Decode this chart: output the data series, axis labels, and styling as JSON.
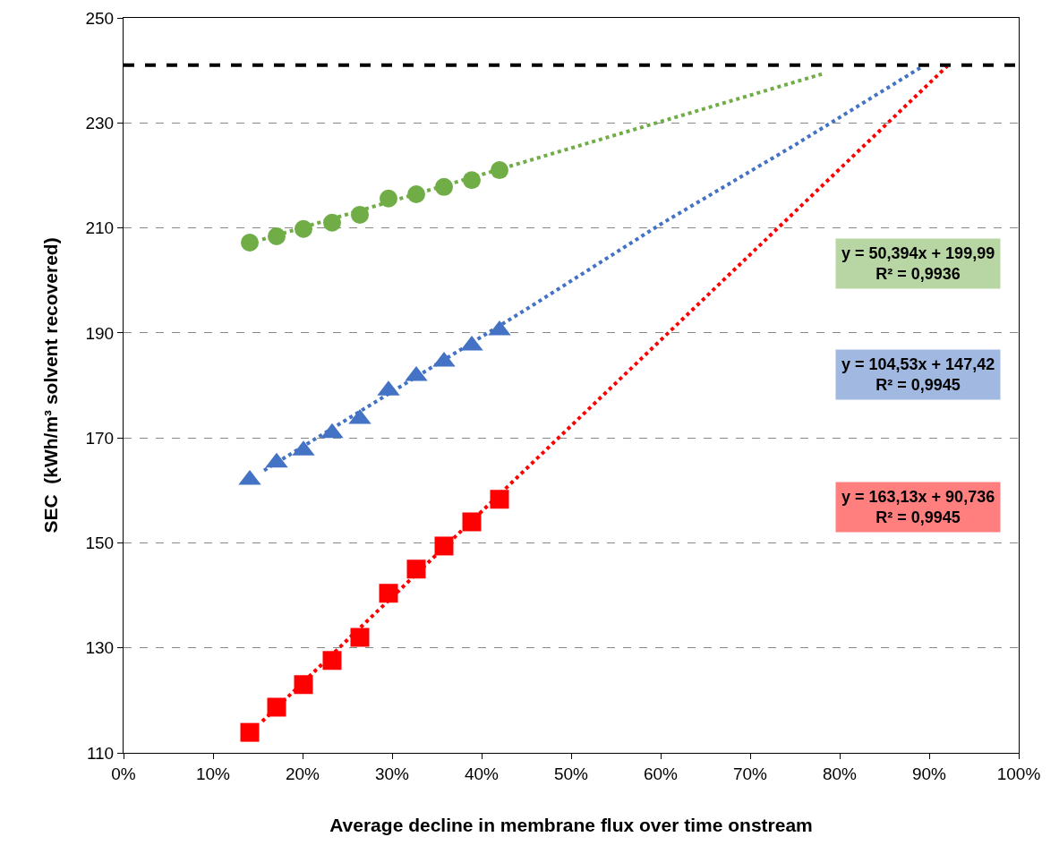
{
  "chart_data": {
    "type": "scatter",
    "xlabel": "Average decline in membrane flux over time onstream",
    "ylabel": "SEC  (kWh/m³ solvent recovered)",
    "x": [
      0.141,
      0.171,
      0.201,
      0.233,
      0.264,
      0.296,
      0.327,
      0.358,
      0.389,
      0.42
    ],
    "series": [
      {
        "color": "#70ad47",
        "marker": "circle",
        "values": [
          207.2,
          208.4,
          209.8,
          211,
          212.5,
          215.6,
          216.4,
          217.8,
          219.1,
          221
        ]
      },
      {
        "color": "#4472c4",
        "marker": "triangle",
        "values": [
          162,
          165.3,
          167.6,
          170.9,
          173.6,
          179,
          181.8,
          184.5,
          187.6,
          190.5
        ]
      },
      {
        "color": "#ff0000",
        "marker": "square",
        "values": [
          113.9,
          118.7,
          123,
          127.6,
          132,
          140.4,
          145,
          149.4,
          154,
          158.3
        ]
      },
      {
        "type": "line",
        "color": "#70ad47",
        "marker": "none",
        "line_style": "dotted",
        "x": [
          0.155,
          0.5,
          0.78
        ],
        "values": [
          207.8,
          225.2,
          239.3
        ]
      },
      {
        "type": "line",
        "color": "#4472c4",
        "marker": "none",
        "line_style": "dotted",
        "x": [
          0.89,
          0.75,
          0.6,
          0.45,
          0.3,
          0.155
        ],
        "values": [
          240.5,
          225.8,
          210.7,
          194.5,
          178.8,
          163.6
        ]
      },
      {
        "type": "line",
        "color": "#ff0000",
        "marker": "none",
        "line_style": "dotted",
        "x": [
          0.155,
          0.5,
          0.92
        ],
        "values": [
          116,
          172.3,
          240.8
        ]
      }
    ],
    "xlim": [
      0,
      1
    ],
    "xticks": [
      {
        "value": 0,
        "label": "0%"
      },
      {
        "value": 0.1,
        "label": "10%"
      },
      {
        "value": 0.2,
        "label": "20%"
      },
      {
        "value": 0.3,
        "label": "30%"
      },
      {
        "value": 0.4,
        "label": "40%"
      },
      {
        "value": 0.5,
        "label": "50%"
      },
      {
        "value": 0.6,
        "label": "60%"
      },
      {
        "value": 0.7,
        "label": "70%"
      },
      {
        "value": 0.8,
        "label": "80%"
      },
      {
        "value": 0.9,
        "label": "90%"
      },
      {
        "value": 1,
        "label": "100%"
      }
    ],
    "ylim": [
      110,
      250
    ],
    "yticks": [
      110,
      130,
      150,
      170,
      190,
      210,
      230,
      250
    ],
    "ref_lines": [
      {
        "axis": "y",
        "value": 241,
        "color": "#000000",
        "line_style": "dashed"
      }
    ],
    "annotations": [
      "y = 50,394x + 199,99\nR² = 0,9936",
      "y = 104,53x + 147,42\nR² = 0,9945",
      "y = 163,13x + 90,736\nR² = 0,9945"
    ],
    "grid": "y"
  }
}
